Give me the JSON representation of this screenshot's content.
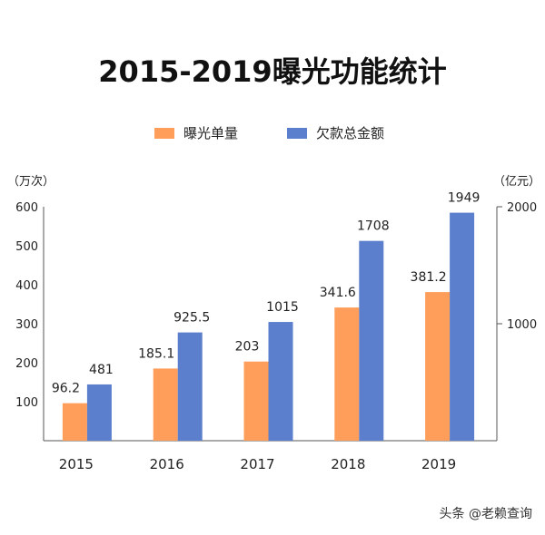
{
  "chart_data": {
    "type": "bar",
    "title": "2015-2019曝光功能统计",
    "categories": [
      "2015",
      "2016",
      "2017",
      "2018",
      "2019"
    ],
    "series": [
      {
        "name": "曝光单量",
        "axis": "left",
        "color": "#FF9E5A",
        "values": [
          96.2,
          185.1,
          203,
          341.6,
          381.2
        ],
        "labels": [
          "96.2",
          "185.1",
          "203",
          "341.6",
          "381.2"
        ]
      },
      {
        "name": "欠款总金额",
        "axis": "right",
        "color": "#5B7FCC",
        "values": [
          481,
          925.5,
          1015,
          1708,
          1949
        ],
        "labels": [
          "481",
          "925.5",
          "1015",
          "1708",
          "1949"
        ]
      }
    ],
    "left_axis": {
      "unit": "（万次）",
      "ticks": [
        "100",
        "200",
        "300",
        "400",
        "500",
        "600"
      ],
      "range": [
        0,
        600
      ]
    },
    "right_axis": {
      "unit": "（亿元）",
      "ticks": [
        "1000",
        "2000"
      ],
      "range": [
        0,
        2000
      ]
    },
    "legend_position": "top-center",
    "grid": false
  },
  "watermark": "头条 @老赖查询"
}
